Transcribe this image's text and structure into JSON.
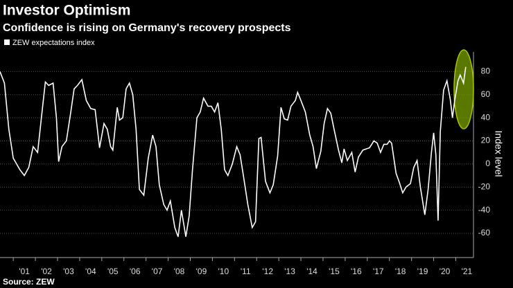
{
  "chart_data": {
    "type": "line",
    "title": "Investor Optimism",
    "subtitle": "Confidence is rising on Germany's recovery prospects",
    "source": "Source: ZEW",
    "ylabel": "Index level",
    "x": [
      2000.4,
      2000.6,
      2000.8,
      2001.0,
      2001.3,
      2001.5,
      2001.7,
      2001.9,
      2002.1,
      2002.3,
      2002.45,
      2002.6,
      2002.8,
      2002.95,
      2003.05,
      2003.2,
      2003.4,
      2003.6,
      2003.75,
      2003.9,
      2004.1,
      2004.3,
      2004.5,
      2004.7,
      2004.9,
      2005.1,
      2005.25,
      2005.4,
      2005.5,
      2005.7,
      2005.8,
      2005.95,
      2006.1,
      2006.25,
      2006.4,
      2006.55,
      2006.7,
      2006.9,
      2007.1,
      2007.3,
      2007.45,
      2007.6,
      2007.8,
      2007.95,
      2008.1,
      2008.3,
      2008.45,
      2008.6,
      2008.8,
      2008.95,
      2009.1,
      2009.3,
      2009.45,
      2009.6,
      2009.8,
      2009.95,
      2010.1,
      2010.25,
      2010.4,
      2010.55,
      2010.7,
      2010.9,
      2011.1,
      2011.25,
      2011.4,
      2011.6,
      2011.8,
      2011.95,
      2012.1,
      2012.2,
      2012.4,
      2012.6,
      2012.75,
      2012.95,
      2013.1,
      2013.25,
      2013.4,
      2013.55,
      2013.75,
      2013.85,
      2014.0,
      2014.2,
      2014.4,
      2014.55,
      2014.7,
      2014.9,
      2015.05,
      2015.2,
      2015.35,
      2015.5,
      2015.7,
      2015.85,
      2015.95,
      2016.1,
      2016.3,
      2016.45,
      2016.6,
      2016.8,
      2016.95,
      2017.1,
      2017.3,
      2017.45,
      2017.6,
      2017.75,
      2017.9,
      2018.0,
      2018.1,
      2018.3,
      2018.45,
      2018.6,
      2018.75,
      2018.95,
      2019.1,
      2019.25,
      2019.4,
      2019.6,
      2019.75,
      2019.9,
      2020.0,
      2020.1,
      2020.2,
      2020.3,
      2020.45,
      2020.6,
      2020.75,
      2020.85,
      2020.95,
      2021.1,
      2021.2,
      2021.35,
      2021.45
    ],
    "series": [
      {
        "name": "ZEW expectations index",
        "color": "#ffffff",
        "values": [
          80,
          70,
          30,
          5,
          -5,
          -10,
          -3,
          15,
          10,
          45,
          71,
          68,
          70,
          40,
          2,
          15,
          20,
          45,
          65,
          68,
          73,
          55,
          48,
          47,
          14,
          35,
          30,
          15,
          12,
          49,
          38,
          40,
          65,
          70,
          60,
          30,
          -22,
          -27,
          5,
          25,
          15,
          -18,
          -35,
          -40,
          -32,
          -55,
          -63,
          -40,
          -63,
          -45,
          -5,
          40,
          45,
          57,
          50,
          50,
          45,
          53,
          30,
          -5,
          -10,
          0,
          15,
          8,
          -10,
          -35,
          -55,
          -50,
          22,
          23,
          -15,
          -25,
          -18,
          7,
          49,
          39,
          38,
          50,
          55,
          62,
          55,
          45,
          25,
          15,
          -4,
          11,
          35,
          48,
          44,
          30,
          12,
          1,
          13,
          3,
          10,
          -7,
          6,
          12,
          13,
          14,
          20,
          18,
          10,
          17,
          17,
          20,
          18,
          -8,
          -16,
          -25,
          -20,
          -17,
          -3,
          3,
          -20,
          -44,
          -22,
          10,
          27,
          8,
          -49,
          28,
          64,
          72,
          56,
          40,
          55,
          72,
          77,
          70,
          84
        ]
      }
    ],
    "xlim": [
      2000.4,
      2021.8
    ],
    "xticks": [
      {
        "value": 2001,
        "label": "'01"
      },
      {
        "value": 2002,
        "label": "'02"
      },
      {
        "value": 2003,
        "label": "'03"
      },
      {
        "value": 2004,
        "label": "'04"
      },
      {
        "value": 2005,
        "label": "'05"
      },
      {
        "value": 2006,
        "label": "'06"
      },
      {
        "value": 2007,
        "label": "'07"
      },
      {
        "value": 2008,
        "label": "'08"
      },
      {
        "value": 2009,
        "label": "'09"
      },
      {
        "value": 2010,
        "label": "'10"
      },
      {
        "value": 2011,
        "label": "'11"
      },
      {
        "value": 2012,
        "label": "'12"
      },
      {
        "value": 2013,
        "label": "'13"
      },
      {
        "value": 2014,
        "label": "'14"
      },
      {
        "value": 2015,
        "label": "'15"
      },
      {
        "value": 2016,
        "label": "'16"
      },
      {
        "value": 2017,
        "label": "'17"
      },
      {
        "value": 2018,
        "label": "'18"
      },
      {
        "value": 2019,
        "label": "'19"
      },
      {
        "value": 2020,
        "label": "'20"
      },
      {
        "value": 2021,
        "label": "'21"
      }
    ],
    "ylim": [
      -81,
      97
    ],
    "yticks": [
      -60,
      -40,
      -20,
      0,
      20,
      40,
      60,
      80
    ],
    "grid": true
  }
}
